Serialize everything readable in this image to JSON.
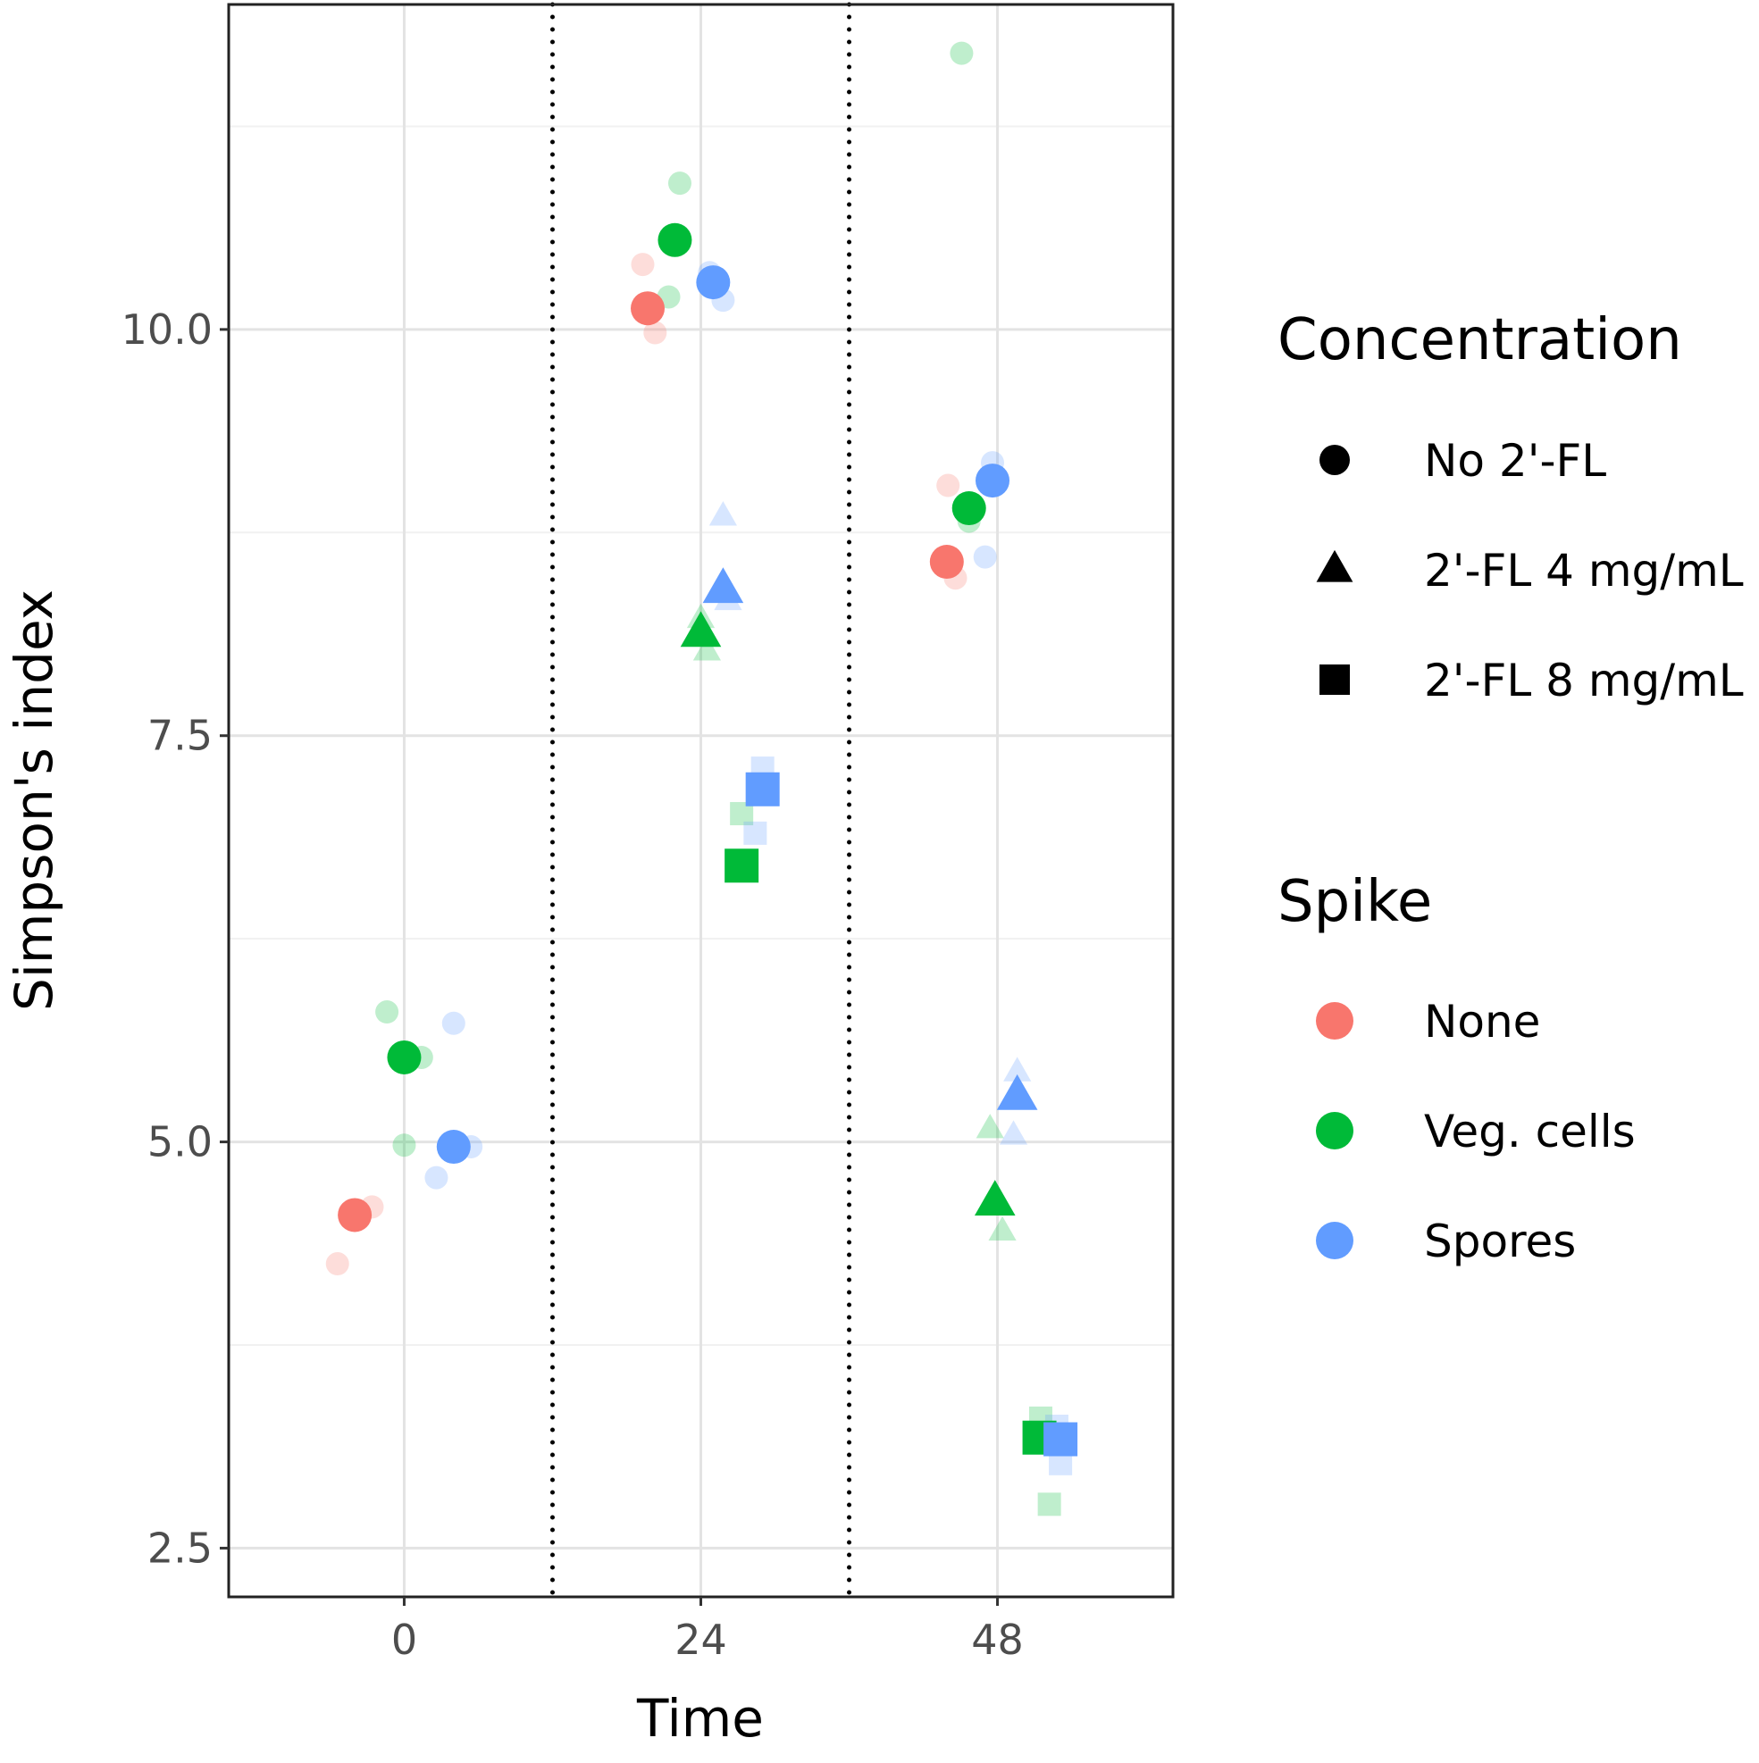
{
  "chart_data": {
    "type": "scatter",
    "xlabel": "Time",
    "ylabel": "Simpson's index",
    "x_categories": [
      "0",
      "24",
      "48"
    ],
    "x_values": [
      0,
      24,
      48
    ],
    "xlim": [
      -14.2,
      62.2
    ],
    "ylim": [
      2.2,
      12.0
    ],
    "y_ticks": [
      2.5,
      5.0,
      7.5,
      10.0
    ],
    "y_tick_labels": [
      "2.5",
      "5.0",
      "7.5",
      "10.0"
    ],
    "grid": true,
    "separators_x": [
      12,
      36
    ],
    "legend_position": "right",
    "legends": [
      {
        "title": "Concentration",
        "entries": [
          {
            "label": "No 2'-FL",
            "shape": "circle"
          },
          {
            "label": "2'-FL 4 mg/mL",
            "shape": "triangle"
          },
          {
            "label": "2'-FL 8 mg/mL",
            "shape": "square"
          }
        ]
      },
      {
        "title": "Spike",
        "entries": [
          {
            "label": "None",
            "color": "#F8766D"
          },
          {
            "label": "Veg. cells",
            "color": "#00BA38"
          },
          {
            "label": "Spores",
            "color": "#619CFF"
          }
        ]
      }
    ],
    "series": [
      {
        "concentration": "No 2'-FL",
        "spike": "None",
        "time": 0,
        "mean": [
          -4.0,
          4.55
        ],
        "replicates": [
          [
            -5.4,
            4.25
          ],
          [
            -2.6,
            4.6
          ],
          [
            -4.0,
            4.55
          ]
        ]
      },
      {
        "concentration": "No 2'-FL",
        "spike": "Veg. cells",
        "time": 0,
        "mean": [
          0.0,
          5.52
        ],
        "replicates": [
          [
            -1.4,
            5.8
          ],
          [
            1.4,
            5.52
          ],
          [
            0.0,
            4.98
          ]
        ]
      },
      {
        "concentration": "No 2'-FL",
        "spike": "Spores",
        "time": 0,
        "mean": [
          4.0,
          4.97
        ],
        "replicates": [
          [
            4.0,
            5.73
          ],
          [
            5.4,
            4.97
          ],
          [
            2.6,
            4.78
          ]
        ]
      },
      {
        "concentration": "No 2'-FL",
        "spike": "None",
        "time": 24,
        "mean": [
          19.7,
          10.13
        ],
        "replicates": [
          [
            19.3,
            10.4
          ],
          [
            20.3,
            9.98
          ],
          [
            19.7,
            10.13
          ]
        ]
      },
      {
        "concentration": "No 2'-FL",
        "spike": "Veg. cells",
        "time": 24,
        "mean": [
          21.9,
          10.55
        ],
        "replicates": [
          [
            22.3,
            10.9
          ],
          [
            21.4,
            10.2
          ],
          [
            21.9,
            10.55
          ]
        ]
      },
      {
        "concentration": "No 2'-FL",
        "spike": "Spores",
        "time": 24,
        "mean": [
          25.0,
          10.29
        ],
        "replicates": [
          [
            25.8,
            10.18
          ],
          [
            24.7,
            10.35
          ],
          [
            25.0,
            10.29
          ]
        ]
      },
      {
        "concentration": "2'-FL 4 mg/mL",
        "spike": "Veg. cells",
        "time": 24,
        "mean": [
          24.0,
          8.13
        ],
        "replicates": [
          [
            24.0,
            8.22
          ],
          [
            24.5,
            8.02
          ],
          [
            24.0,
            8.13
          ]
        ]
      },
      {
        "concentration": "2'-FL 4 mg/mL",
        "spike": "Spores",
        "time": 24,
        "mean": [
          25.8,
          8.4
        ],
        "replicates": [
          [
            25.8,
            8.85
          ],
          [
            26.2,
            8.33
          ],
          [
            25.8,
            8.4
          ]
        ]
      },
      {
        "concentration": "2'-FL 8 mg/mL",
        "spike": "Veg. cells",
        "time": 24,
        "mean": [
          27.3,
          6.7
        ],
        "replicates": [
          [
            27.3,
            7.02
          ],
          [
            27.6,
            6.67
          ],
          [
            27.3,
            6.7
          ]
        ]
      },
      {
        "concentration": "2'-FL 8 mg/mL",
        "spike": "Spores",
        "time": 24,
        "mean": [
          29.0,
          7.17
        ],
        "replicates": [
          [
            29.0,
            7.3
          ],
          [
            28.4,
            6.9
          ],
          [
            29.0,
            7.17
          ]
        ]
      },
      {
        "concentration": "No 2'-FL",
        "spike": "None",
        "time": 48,
        "mean": [
          43.9,
          8.57
        ],
        "replicates": [
          [
            44.0,
            9.04
          ],
          [
            44.6,
            8.47
          ],
          [
            43.9,
            8.57
          ]
        ]
      },
      {
        "concentration": "No 2'-FL",
        "spike": "Veg. cells",
        "time": 48,
        "mean": [
          45.7,
          8.9
        ],
        "replicates": [
          [
            45.1,
            11.7
          ],
          [
            45.7,
            8.82
          ],
          [
            45.7,
            8.9
          ]
        ]
      },
      {
        "concentration": "No 2'-FL",
        "spike": "Spores",
        "time": 48,
        "mean": [
          47.6,
          9.07
        ],
        "replicates": [
          [
            47.6,
            9.18
          ],
          [
            47.0,
            8.6
          ],
          [
            47.6,
            9.07
          ]
        ]
      },
      {
        "concentration": "2'-FL 4 mg/mL",
        "spike": "Veg. cells",
        "time": 48,
        "mean": [
          47.8,
          4.63
        ],
        "replicates": [
          [
            47.4,
            5.08
          ],
          [
            48.4,
            4.45
          ],
          [
            47.8,
            4.63
          ]
        ]
      },
      {
        "concentration": "2'-FL 4 mg/mL",
        "spike": "Spores",
        "time": 48,
        "mean": [
          49.6,
          5.28
        ],
        "replicates": [
          [
            49.6,
            5.43
          ],
          [
            49.3,
            5.04
          ],
          [
            49.6,
            5.28
          ]
        ]
      },
      {
        "concentration": "2'-FL 8 mg/mL",
        "spike": "Veg. cells",
        "time": 48,
        "mean": [
          51.4,
          3.18
        ],
        "replicates": [
          [
            51.5,
            3.3
          ],
          [
            52.2,
            2.77
          ],
          [
            51.4,
            3.18
          ]
        ]
      },
      {
        "concentration": "2'-FL 8 mg/mL",
        "spike": "Spores",
        "time": 48,
        "mean": [
          53.1,
          3.17
        ],
        "replicates": [
          [
            53.1,
            3.02
          ],
          [
            52.8,
            3.25
          ],
          [
            53.1,
            3.17
          ]
        ]
      }
    ]
  }
}
